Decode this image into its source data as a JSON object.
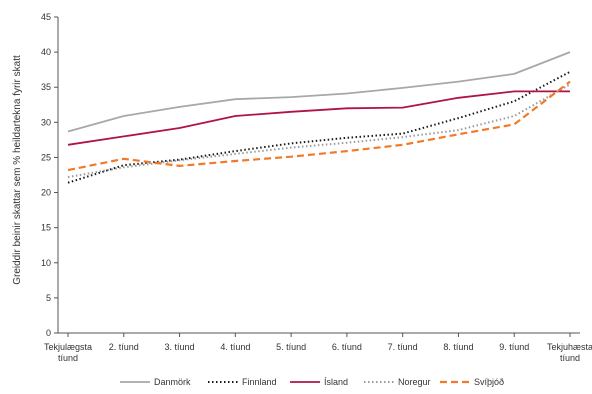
{
  "chart_data": {
    "type": "line",
    "ylabel": "Greiddir beinir skattar sem % heildartekna fyrir skatt",
    "xlabel": "",
    "ylim": [
      0,
      45
    ],
    "yticks": [
      "0",
      "5",
      "10",
      "15",
      "20",
      "25",
      "30",
      "35",
      "40",
      "45"
    ],
    "categories": [
      [
        "Tekjulægsta",
        "tíund"
      ],
      [
        "2. tíund"
      ],
      [
        "3. tíund"
      ],
      [
        "4. tíund"
      ],
      [
        "5. tíund"
      ],
      [
        "6. tíund"
      ],
      [
        "7. tíund"
      ],
      [
        "8. tíund"
      ],
      [
        "9. tíund"
      ],
      [
        "Tekjuhæsta",
        "tíund"
      ]
    ],
    "grid": false,
    "legend_position": "bottom",
    "series": [
      {
        "name": "Danmörk",
        "color": "#a8a8a8",
        "style": "solid",
        "values": [
          28.7,
          30.9,
          32.2,
          33.3,
          33.6,
          34.1,
          34.9,
          35.8,
          36.9,
          40.0
        ]
      },
      {
        "name": "Finnland",
        "color": "#1a1a1a",
        "style": "dotted",
        "values": [
          21.4,
          23.9,
          24.7,
          25.9,
          27.0,
          27.8,
          28.4,
          30.6,
          33.0,
          37.2
        ]
      },
      {
        "name": "Ísland",
        "color": "#b0124a",
        "style": "solid",
        "values": [
          26.8,
          28.0,
          29.2,
          30.9,
          31.5,
          32.0,
          32.1,
          33.5,
          34.4,
          34.4
        ]
      },
      {
        "name": "Noregur",
        "color": "#9a9a9a",
        "style": "dotted",
        "values": [
          22.2,
          23.6,
          24.6,
          25.5,
          26.4,
          27.1,
          27.9,
          28.9,
          30.9,
          35.4
        ]
      },
      {
        "name": "Svíþjóð",
        "color": "#f07a2a",
        "style": "dashed",
        "values": [
          23.2,
          24.8,
          23.8,
          24.5,
          25.1,
          25.9,
          26.8,
          28.3,
          29.7,
          35.8
        ]
      }
    ]
  }
}
